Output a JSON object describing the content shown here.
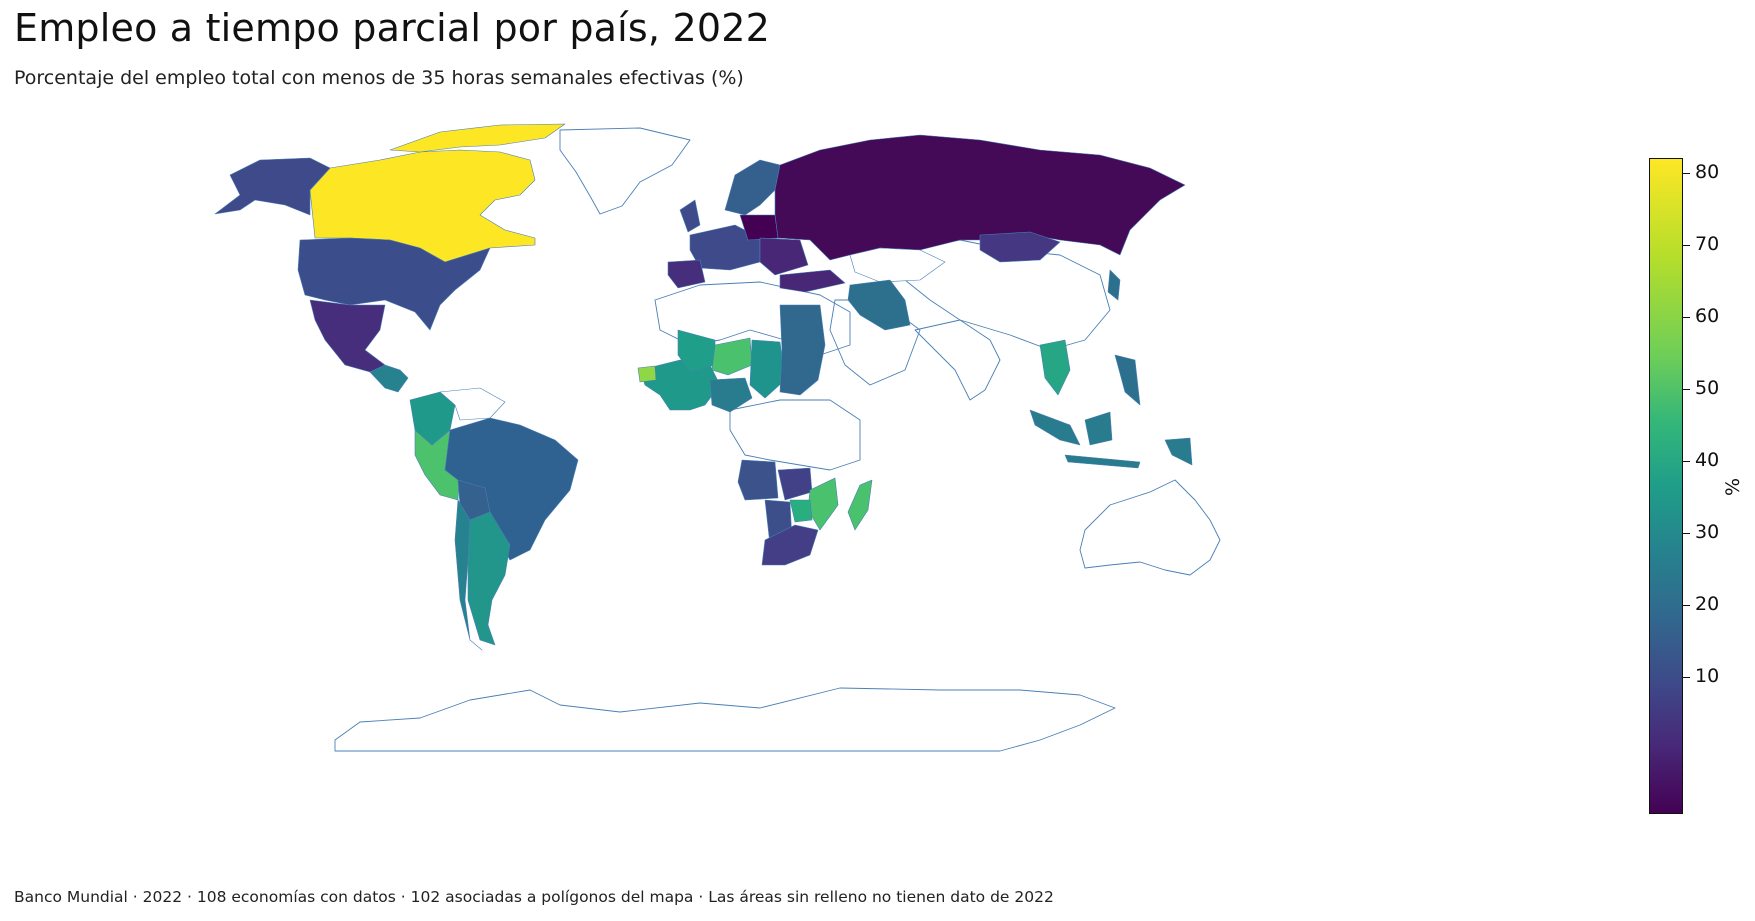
{
  "title": "Empleo a tiempo parcial por país, 2022",
  "subtitle": "Porcentaje del empleo total con menos de 35 horas semanales efectivas (%)",
  "footer": "Banco Mundial · 2022 · 108 economías con datos · 102 asociadas a polígonos del mapa · Las áreas sin relleno no tienen dato de 2022",
  "colorbar": {
    "title": "%",
    "ticks": [
      "80",
      "70",
      "60",
      "50",
      "40",
      "30",
      "20",
      "10"
    ],
    "colormap": "viridis",
    "min_color": "#440154",
    "max_color": "#fde725",
    "range": [
      0.5,
      82
    ]
  },
  "map": {
    "projection": "equirectangular",
    "no_data_fill": "#ffffff",
    "border_color": "#4a7fb5",
    "regions": [
      {
        "name": "Canadá",
        "color": "#fde725"
      },
      {
        "name": "Estados Unidos",
        "color": "#3b4d8a"
      },
      {
        "name": "México",
        "color": "#472e7c"
      },
      {
        "name": "Brasil",
        "color": "#2f6290"
      },
      {
        "name": "Perú",
        "color": "#4cc26c"
      },
      {
        "name": "Colombia",
        "color": "#1f9a8a"
      },
      {
        "name": "Bolivia",
        "color": "#34618d"
      },
      {
        "name": "Chile",
        "color": "#26828e"
      },
      {
        "name": "Argentina",
        "color": "#22968b"
      },
      {
        "name": "Rusia",
        "color": "#440a58"
      },
      {
        "name": "Mongolia",
        "color": "#453781"
      },
      {
        "name": "Irán",
        "color": "#2d708e"
      },
      {
        "name": "Sudán",
        "color": "#31688e"
      },
      {
        "name": "Níger",
        "color": "#4ac16d"
      },
      {
        "name": "Madagascar",
        "color": "#4ac16d"
      },
      {
        "name": "Mozambique",
        "color": "#4ac16d"
      },
      {
        "name": "Sudáfrica",
        "color": "#433e85"
      },
      {
        "name": "Angola",
        "color": "#3b528b"
      },
      {
        "name": "Indonesia",
        "color": "#297b8e"
      },
      {
        "name": "Tailandia",
        "color": "#26a685"
      },
      {
        "name": "Escandinavia",
        "color": "#355f8d"
      },
      {
        "name": "Europa occidental",
        "color": "#3e4a89"
      },
      {
        "name": "Polonia",
        "color": "#440154"
      }
    ]
  }
}
